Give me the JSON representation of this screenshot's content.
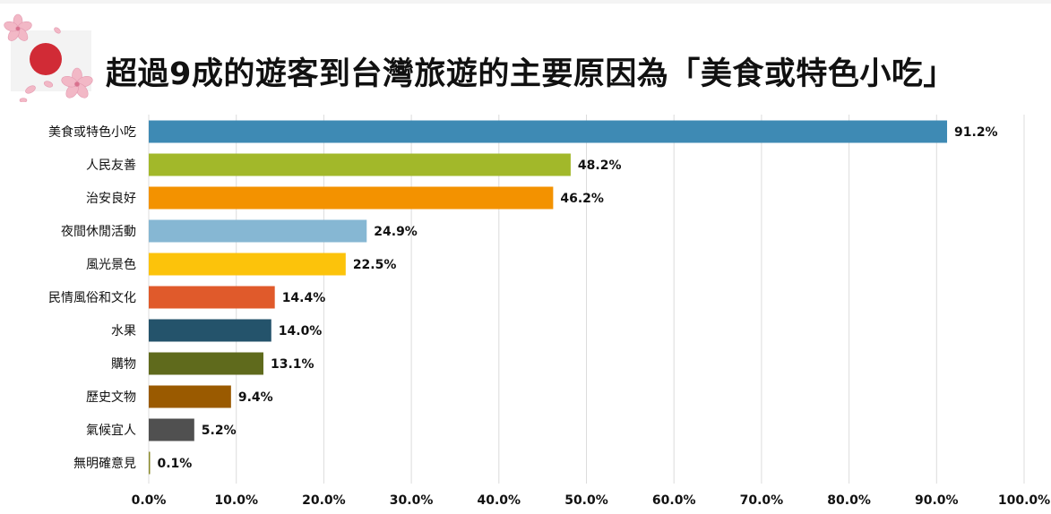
{
  "title": "超過9成的遊客到台灣旅遊的主要原因為「美食或特色小吃」",
  "logo": {
    "icon": "japan-flag-with-cherry-blossoms-icon",
    "flag_color": "#d12b36"
  },
  "colors": {
    "grid": "#dcdcdc",
    "label": "#111111"
  },
  "chart_data": {
    "type": "bar",
    "orientation": "horizontal",
    "title": "超過9成的遊客到台灣旅遊的主要原因為「美食或特色小吃」",
    "xlabel": "",
    "ylabel": "",
    "xlim": [
      0,
      100
    ],
    "x_tick_values": [
      0,
      10,
      20,
      30,
      40,
      50,
      60,
      70,
      80,
      90,
      100
    ],
    "x_tick_labels": [
      "0.0%",
      "10.0%",
      "20.0%",
      "30.0%",
      "40.0%",
      "50.0%",
      "60.0%",
      "70.0%",
      "80.0%",
      "90.0%",
      "100.0%"
    ],
    "grid": true,
    "categories": [
      "美食或特色小吃",
      "人民友善",
      "治安良好",
      "夜間休閒活動",
      "風光景色",
      "民情風俗和文化",
      "水果",
      "購物",
      "歷史文物",
      "氣候宜人",
      "無明確意見"
    ],
    "values": [
      91.2,
      48.2,
      46.2,
      24.9,
      22.5,
      14.4,
      14.0,
      13.1,
      9.4,
      5.2,
      0.1
    ],
    "value_labels": [
      "91.2%",
      "48.2%",
      "46.2%",
      "24.9%",
      "22.5%",
      "14.4%",
      "14.0%",
      "13.1%",
      "9.4%",
      "5.2%",
      "0.1%"
    ],
    "bar_colors": [
      "#3e8ab4",
      "#a2b82a",
      "#f39200",
      "#86b7d3",
      "#fcc30b",
      "#e05a2b",
      "#24536b",
      "#5f6a1c",
      "#9a5a00",
      "#505050",
      "#8a8a2a"
    ]
  }
}
